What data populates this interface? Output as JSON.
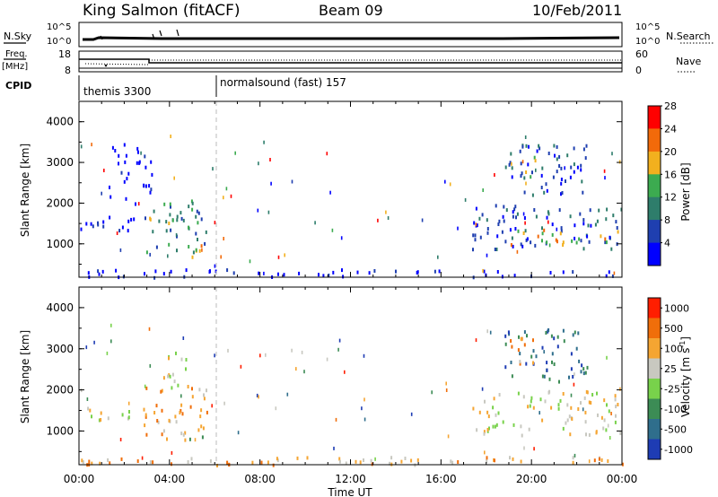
{
  "header": {
    "station": "King Salmon (fitACF)",
    "beam": "Beam 09",
    "date": "10/Feb/2011"
  },
  "status_panels": {
    "nsky_label": "N.Sky",
    "nsky_ticks": [
      "10^5",
      "10^0"
    ],
    "nsearch_label": "N.Search",
    "freq_label_line1": "Freq.",
    "freq_label_line2": "[MHz]",
    "freq_ticks": [
      "18",
      "8"
    ],
    "nave_ticks": [
      "60",
      "0"
    ],
    "nave_label": "Nave",
    "cpid_label": "CPID",
    "cpid_modes": [
      "themis 3300",
      "normalsound (fast) 157"
    ]
  },
  "chart_data": [
    {
      "type": "heatmap",
      "title": "",
      "xlabel": "",
      "ylabel": "Slant Range [km]",
      "xlim": [
        0,
        24
      ],
      "ylim": [
        180,
        4500
      ],
      "x_ticks": [
        "00:00",
        "04:00",
        "08:00",
        "12:00",
        "16:00",
        "20:00",
        "00:00"
      ],
      "y_ticks": [
        1000,
        2000,
        3000,
        4000
      ],
      "colorbar": {
        "label": "Power [dB]",
        "ticks": [
          "4",
          "8",
          "12",
          "16",
          "20",
          "24",
          "28"
        ],
        "colors": [
          "#0000ff",
          "#1f3fb0",
          "#2e7d6b",
          "#3cab50",
          "#f2b01e",
          "#f26a0a",
          "#ff0000"
        ]
      },
      "regions": [
        {
          "t0": 0.0,
          "t1": 2.6,
          "r0": 1300,
          "r1": 1700,
          "level": 0
        },
        {
          "t0": 1.3,
          "t1": 3.2,
          "r0": 2000,
          "r1": 3500,
          "level": 0
        },
        {
          "t0": 2.8,
          "t1": 5.8,
          "r0": 800,
          "r1": 2100,
          "level": 2
        },
        {
          "t0": 3.0,
          "t1": 4.2,
          "r0": 1300,
          "r1": 2000,
          "level": 3
        },
        {
          "t0": 4.5,
          "t1": 5.5,
          "r0": 650,
          "r1": 1100,
          "level": 4
        },
        {
          "t0": 17.3,
          "t1": 24.0,
          "r0": 900,
          "r1": 2000,
          "level": 1
        },
        {
          "t0": 19.0,
          "t1": 24.0,
          "r0": 1000,
          "r1": 1400,
          "level": 4
        },
        {
          "t0": 18.8,
          "t1": 22.5,
          "r0": 2200,
          "r1": 3500,
          "level": 1
        },
        {
          "t0": 19.0,
          "t1": 20.2,
          "r0": 2600,
          "r1": 3300,
          "level": 3
        },
        {
          "t0": 0.0,
          "t1": 24.0,
          "r0": 200,
          "r1": 400,
          "level": 0
        }
      ]
    },
    {
      "type": "heatmap",
      "title": "",
      "xlabel": "Time UT",
      "ylabel": "Slant Range [km]",
      "xlim": [
        0,
        24
      ],
      "ylim": [
        180,
        4500
      ],
      "x_ticks": [
        "00:00",
        "04:00",
        "08:00",
        "12:00",
        "16:00",
        "20:00",
        "00:00"
      ],
      "y_ticks": [
        1000,
        2000,
        3000,
        4000
      ],
      "colorbar": {
        "label": "Velocity [m s^-1]",
        "label_main": "Velocity [",
        "label_unit": "m s",
        "label_sup": "-1",
        "label_close": "]",
        "ticks": [
          "1000",
          "500",
          "100",
          "25",
          "-25",
          "-100",
          "-500",
          "-1000"
        ],
        "colors": [
          "#1e3cb4",
          "#2f6e8c",
          "#3c8c55",
          "#78d24b",
          "#c8c8c0",
          "#f5a532",
          "#f06e0a",
          "#ff1e00"
        ]
      },
      "regions": [
        {
          "t0": 0.0,
          "t1": 2.6,
          "r0": 1300,
          "r1": 1700,
          "level": 4
        },
        {
          "t0": 2.8,
          "t1": 5.8,
          "r0": 800,
          "r1": 2100,
          "level": 5
        },
        {
          "t0": 3.5,
          "t1": 4.8,
          "r0": 1800,
          "r1": 3000,
          "level": 4
        },
        {
          "t0": 4.5,
          "t1": 5.6,
          "r0": 650,
          "r1": 1000,
          "level": 3
        },
        {
          "t0": 17.3,
          "t1": 24.0,
          "r0": 900,
          "r1": 2000,
          "level": 4
        },
        {
          "t0": 18.8,
          "t1": 22.5,
          "r0": 2200,
          "r1": 3500,
          "level": 1
        },
        {
          "t0": 19.0,
          "t1": 20.2,
          "r0": 2600,
          "r1": 3300,
          "level": 5
        },
        {
          "t0": 0.0,
          "t1": 24.0,
          "r0": 200,
          "r1": 400,
          "level": 5
        }
      ]
    }
  ]
}
